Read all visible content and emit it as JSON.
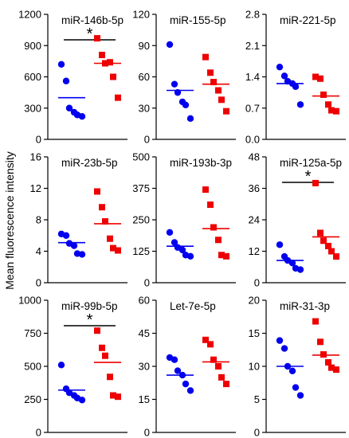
{
  "ylabel": "Mean fluorescence intensity",
  "colors": {
    "blue": "#0000ee",
    "red": "#ee0000",
    "axis": "#000000"
  },
  "chart_data": [
    {
      "type": "scatter",
      "title": "miR-146b-5p",
      "ylim": [
        0,
        1200
      ],
      "yticks": [
        "0",
        "300",
        "600",
        "900",
        "1200"
      ],
      "significance": "*",
      "series": [
        {
          "values": [
            720,
            560,
            300,
            260,
            235,
            220
          ],
          "mean": 400
        },
        {
          "values": [
            970,
            810,
            730,
            740,
            600,
            400
          ],
          "mean": 730
        }
      ]
    },
    {
      "type": "scatter",
      "title": "miR-155-5p",
      "ylim": [
        0,
        120
      ],
      "yticks": [
        "0",
        "30",
        "60",
        "90",
        "120"
      ],
      "significance": "",
      "series": [
        {
          "values": [
            91,
            53,
            45,
            36,
            33,
            20
          ],
          "mean": 47
        },
        {
          "values": [
            79,
            64,
            55,
            47,
            38,
            27
          ],
          "mean": 53
        }
      ]
    },
    {
      "type": "scatter",
      "title": "miR-221-5p",
      "ylim": [
        0,
        2.8
      ],
      "yticks": [
        "0.0",
        "0.7",
        "1.4",
        "2.1",
        "2.8"
      ],
      "significance": "",
      "series": [
        {
          "values": [
            1.62,
            1.42,
            1.3,
            1.25,
            1.18,
            0.78
          ],
          "mean": 1.25
        },
        {
          "values": [
            1.4,
            1.36,
            1.0,
            0.78,
            0.65,
            0.63
          ],
          "mean": 0.97
        }
      ]
    },
    {
      "type": "scatter",
      "title": "miR-23b-5p",
      "ylim": [
        0,
        16
      ],
      "yticks": [
        "0",
        "4",
        "8",
        "12",
        "16"
      ],
      "significance": "",
      "series": [
        {
          "values": [
            6.2,
            6.0,
            5.0,
            4.7,
            3.7,
            3.6
          ],
          "mean": 5.1
        },
        {
          "values": [
            11.6,
            9.6,
            7.8,
            5.6,
            4.4,
            4.1
          ],
          "mean": 7.5
        }
      ]
    },
    {
      "type": "scatter",
      "title": "miR-193b-3p",
      "ylim": [
        0,
        500
      ],
      "yticks": [
        "0",
        "125",
        "250",
        "375",
        "500"
      ],
      "significance": "",
      "series": [
        {
          "values": [
            200,
            160,
            140,
            130,
            110,
            105
          ],
          "mean": 145
        },
        {
          "values": [
            370,
            310,
            220,
            170,
            110,
            105
          ],
          "mean": 215
        }
      ]
    },
    {
      "type": "scatter",
      "title": "miR-125a-5p",
      "ylim": [
        0,
        48
      ],
      "yticks": [
        "0",
        "12",
        "24",
        "36",
        "48"
      ],
      "significance": "*",
      "series": [
        {
          "values": [
            14.5,
            10.0,
            8.5,
            7.5,
            5.5,
            5.0
          ],
          "mean": 8.5
        },
        {
          "values": [
            38,
            19,
            16,
            14,
            12,
            10
          ],
          "mean": 17.5
        }
      ]
    },
    {
      "type": "scatter",
      "title": "miR-99b-5p",
      "ylim": [
        0,
        1000
      ],
      "yticks": [
        "0",
        "250",
        "500",
        "750",
        "1000"
      ],
      "significance": "*",
      "series": [
        {
          "values": [
            510,
            330,
            300,
            280,
            260,
            245
          ],
          "mean": 320
        },
        {
          "values": [
            770,
            640,
            580,
            420,
            280,
            270
          ],
          "mean": 530
        }
      ]
    },
    {
      "type": "scatter",
      "title": "Let-7e-5p",
      "ylim": [
        0,
        60
      ],
      "yticks": [
        "0",
        "15",
        "30",
        "45",
        "60"
      ],
      "significance": "",
      "series": [
        {
          "values": [
            34,
            33,
            28,
            26,
            22,
            19
          ],
          "mean": 26
        },
        {
          "values": [
            42,
            40,
            33,
            30,
            25,
            22
          ],
          "mean": 32
        }
      ]
    },
    {
      "type": "scatter",
      "title": "miR-31-3p",
      "ylim": [
        0,
        20
      ],
      "yticks": [
        "0",
        "5",
        "10",
        "15",
        "20"
      ],
      "significance": "",
      "series": [
        {
          "values": [
            13.9,
            12.7,
            10.0,
            9.3,
            6.8,
            5.6
          ],
          "mean": 10.0
        },
        {
          "values": [
            16.8,
            13.7,
            11.8,
            10.6,
            9.8,
            9.5
          ],
          "mean": 11.7
        }
      ]
    }
  ]
}
